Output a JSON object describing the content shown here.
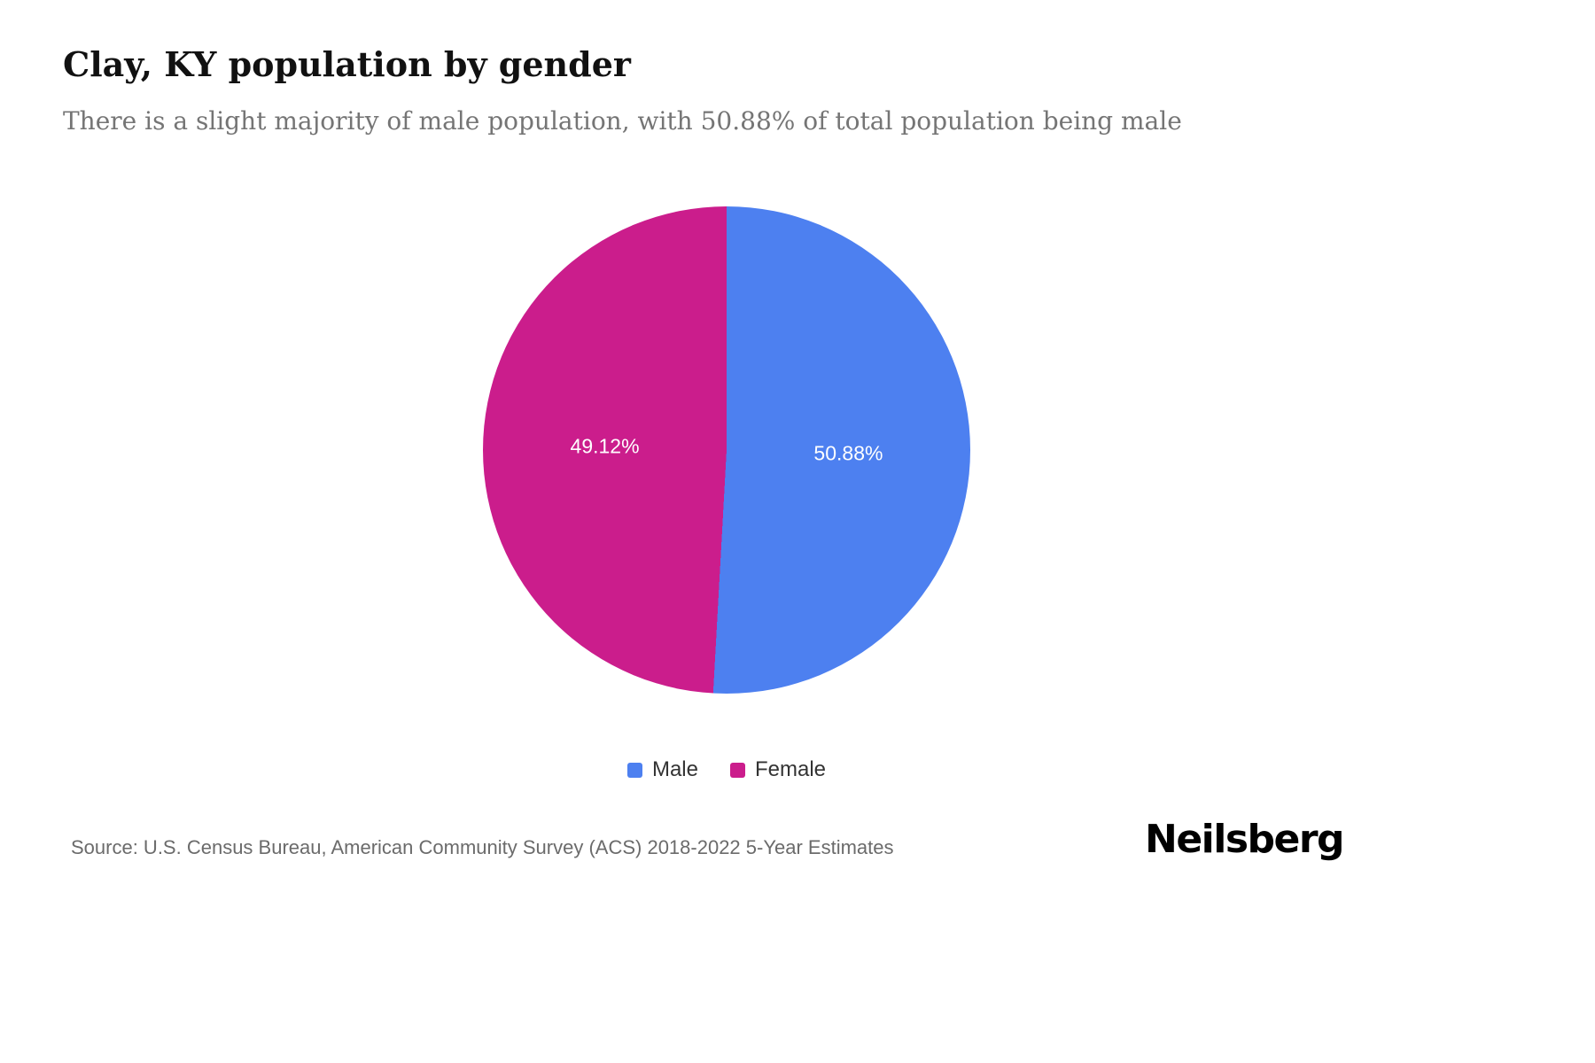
{
  "header": {
    "title": "Clay, KY population by gender",
    "subtitle": "There is a slight majority of male population, with 50.88% of total population being male"
  },
  "chart_data": {
    "type": "pie",
    "title": "Clay, KY population by gender",
    "start_angle_deg": 0,
    "direction": "clockwise",
    "legend_position": "bottom",
    "slices": [
      {
        "label": "Male",
        "value": 50.88,
        "display": "50.88%",
        "color": "#4d80f0"
      },
      {
        "label": "Female",
        "value": 49.12,
        "display": "49.12%",
        "color": "#cb1d8c"
      }
    ]
  },
  "footer": {
    "source": "Source: U.S. Census Bureau, American Community Survey (ACS) 2018-2022 5-Year Estimates",
    "brand": "Neilsberg"
  }
}
